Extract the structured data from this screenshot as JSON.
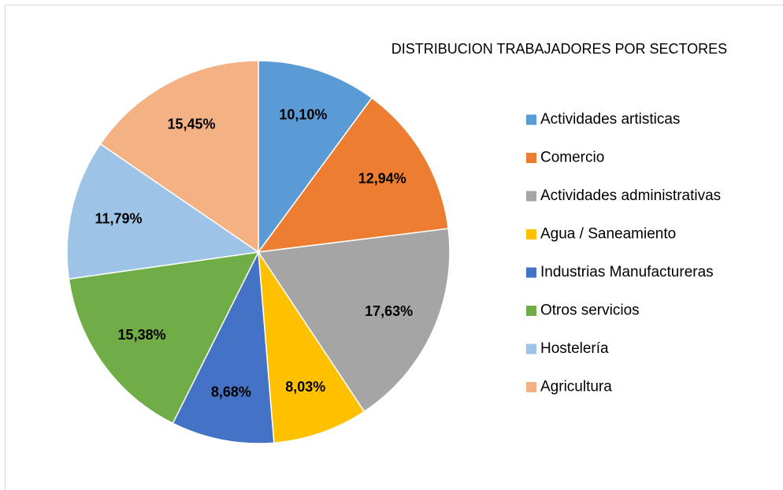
{
  "chart_data": {
    "type": "pie",
    "title": "DISTRIBUCION TRABAJADORES POR SECTORES",
    "categories": [
      "Actividades artisticas",
      "Comercio",
      "Actividades administrativas",
      "Agua / Saneamiento",
      "Industrias Manufactureras",
      "Otros servicios",
      "Hostelería",
      "Agricultura"
    ],
    "values": [
      10.1,
      12.94,
      17.63,
      8.03,
      8.68,
      15.38,
      11.79,
      15.45
    ],
    "value_labels": [
      "10,10%",
      "12,94%",
      "17,63%",
      "8,03%",
      "8,68%",
      "15,38%",
      "11,79%",
      "15,45%"
    ],
    "colors": [
      "#5b9bd5",
      "#ed7d31",
      "#a5a5a5",
      "#ffc000",
      "#4472c4",
      "#70ad47",
      "#9dc3e6",
      "#f4b183"
    ],
    "legend": "right"
  }
}
